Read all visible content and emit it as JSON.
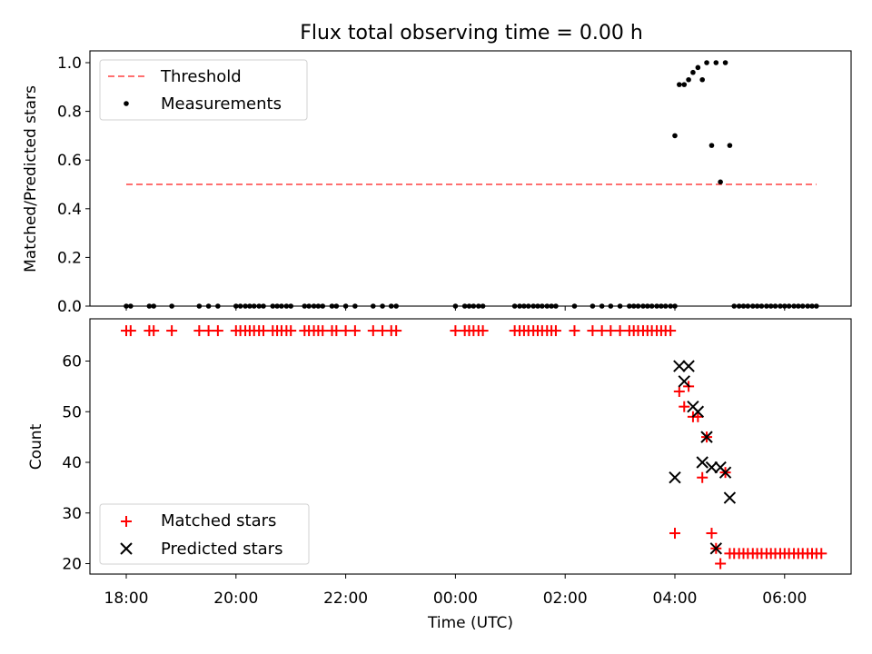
{
  "chart_data": [
    {
      "type": "scatter",
      "title": "Flux total observing time = 0.00 h",
      "xlabel": "",
      "ylabel": "Matched/Predicted stars",
      "ylim": [
        0,
        1.05
      ],
      "xlim": [
        -0.67,
        13.25
      ],
      "x_unit": "hours since 18:00 UTC",
      "yticks": [
        "0.0",
        "0.2",
        "0.4",
        "0.6",
        "0.8",
        "1.0"
      ],
      "legend_position": "top-left",
      "legend": [
        "Threshold",
        "Measurements"
      ],
      "threshold": {
        "name": "Threshold",
        "y": 0.5,
        "x_range": [
          0.0,
          12.58
        ],
        "color": "#ff7070",
        "style": "dashed"
      },
      "series": [
        {
          "name": "Measurements",
          "color": "#000000",
          "points": [
            [
              10.0,
              0.7
            ],
            [
              10.08,
              0.91
            ],
            [
              10.17,
              0.91
            ],
            [
              10.25,
              0.93
            ],
            [
              10.33,
              0.96
            ],
            [
              10.42,
              0.98
            ],
            [
              10.5,
              0.93
            ],
            [
              10.58,
              1.0
            ],
            [
              10.67,
              0.66
            ],
            [
              10.75,
              1.0
            ],
            [
              10.83,
              0.51
            ],
            [
              10.92,
              1.0
            ],
            [
              11.0,
              0.66
            ]
          ],
          "zero_x": [
            0.0,
            0.08,
            0.42,
            0.5,
            0.83,
            1.33,
            1.5,
            1.67,
            2.0,
            2.08,
            2.17,
            2.25,
            2.33,
            2.42,
            2.5,
            2.67,
            2.75,
            2.83,
            2.92,
            3.0,
            3.25,
            3.33,
            3.42,
            3.5,
            3.58,
            3.75,
            3.83,
            4.0,
            4.17,
            4.5,
            4.67,
            4.83,
            4.92,
            6.0,
            6.17,
            6.25,
            6.33,
            6.42,
            6.5,
            7.08,
            7.17,
            7.25,
            7.33,
            7.42,
            7.5,
            7.58,
            7.67,
            7.75,
            7.83,
            8.17,
            8.5,
            8.67,
            8.83,
            9.0,
            9.17,
            9.25,
            9.33,
            9.42,
            9.5,
            9.58,
            9.67,
            9.75,
            9.83,
            9.92,
            10.0,
            11.08,
            11.17,
            11.25,
            11.33,
            11.42,
            11.5,
            11.58,
            11.67,
            11.75,
            11.83,
            11.92,
            12.0,
            12.08,
            12.17,
            12.25,
            12.33,
            12.42,
            12.5,
            12.58
          ]
        }
      ]
    },
    {
      "type": "scatter",
      "title": "",
      "xlabel": "Time (UTC)",
      "ylabel": "Count",
      "ylim": [
        18,
        68.7
      ],
      "xlim": [
        -0.67,
        13.25
      ],
      "x_unit": "hours since 18:00 UTC",
      "xticks": [
        {
          "x": 0,
          "label": "18:00"
        },
        {
          "x": 2,
          "label": "20:00"
        },
        {
          "x": 4,
          "label": "22:00"
        },
        {
          "x": 6,
          "label": "00:00"
        },
        {
          "x": 8,
          "label": "02:00"
        },
        {
          "x": 10,
          "label": "04:00"
        },
        {
          "x": 12,
          "label": "06:00"
        }
      ],
      "yticks": [
        "20",
        "30",
        "40",
        "50",
        "60"
      ],
      "legend_position": "bottom-left",
      "legend": [
        "Matched stars",
        "Predicted stars"
      ],
      "series": [
        {
          "name": "Matched stars",
          "marker": "plus",
          "color": "#ff0000",
          "points": [
            [
              10.0,
              26
            ],
            [
              10.08,
              54
            ],
            [
              10.17,
              51
            ],
            [
              10.25,
              55
            ],
            [
              10.33,
              49
            ],
            [
              10.42,
              49
            ],
            [
              10.5,
              37
            ],
            [
              10.58,
              45
            ],
            [
              10.67,
              26
            ],
            [
              10.75,
              23
            ],
            [
              10.83,
              20
            ],
            [
              10.92,
              38
            ]
          ],
          "top_row": {
            "y": 66,
            "x": [
              0.0,
              0.08,
              0.42,
              0.5,
              0.83,
              1.33,
              1.5,
              1.67,
              2.0,
              2.08,
              2.17,
              2.25,
              2.33,
              2.42,
              2.5,
              2.67,
              2.75,
              2.83,
              2.92,
              3.0,
              3.25,
              3.33,
              3.42,
              3.5,
              3.58,
              3.75,
              3.83,
              4.0,
              4.17,
              4.5,
              4.67,
              4.83,
              4.92,
              6.0,
              6.17,
              6.25,
              6.33,
              6.42,
              6.5,
              7.08,
              7.17,
              7.25,
              7.33,
              7.42,
              7.5,
              7.58,
              7.67,
              7.75,
              7.83,
              8.17,
              8.5,
              8.67,
              8.83,
              9.0,
              9.17,
              9.25,
              9.33,
              9.42,
              9.5,
              9.58,
              9.67,
              9.75,
              9.83,
              9.92
            ]
          },
          "bottom_row": {
            "y": 22,
            "x": [
              11.0,
              11.08,
              11.17,
              11.25,
              11.33,
              11.42,
              11.5,
              11.58,
              11.67,
              11.75,
              11.83,
              11.92,
              12.0,
              12.08,
              12.17,
              12.25,
              12.33,
              12.42,
              12.5,
              12.58,
              12.67
            ]
          }
        },
        {
          "name": "Predicted stars",
          "marker": "x",
          "color": "#000000",
          "points": [
            [
              10.0,
              37
            ],
            [
              10.08,
              59
            ],
            [
              10.17,
              56
            ],
            [
              10.25,
              59
            ],
            [
              10.33,
              51
            ],
            [
              10.42,
              50
            ],
            [
              10.5,
              40
            ],
            [
              10.58,
              45
            ],
            [
              10.67,
              39
            ],
            [
              10.75,
              23
            ],
            [
              10.83,
              39
            ],
            [
              10.92,
              38
            ],
            [
              11.0,
              33
            ]
          ]
        }
      ]
    }
  ]
}
